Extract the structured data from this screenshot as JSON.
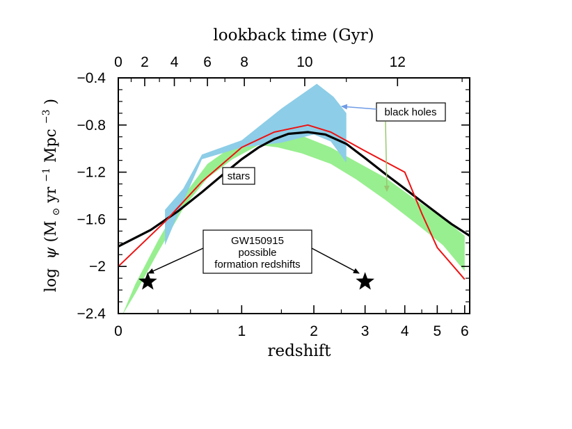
{
  "chart_data": {
    "type": "line",
    "title": "",
    "xlabel": "redshift",
    "xlabel_top": "lookback time (Gyr)",
    "ylabel_parts": {
      "log": "log",
      "psi": "ψ",
      "open": "(M",
      "sun": "⊙",
      "yr": " yr",
      "yr_exp": "−1",
      "mpc": " Mpc",
      "mpc_exp": "−3",
      "close": ")"
    },
    "xscale": "log(1+z)",
    "xlim": [
      0,
      6.2
    ],
    "ylim": [
      -2.4,
      -0.4
    ],
    "x_ticks": [
      "0",
      "1",
      "2",
      "3",
      "4",
      "5",
      "6"
    ],
    "y_ticks": [
      "−0.4",
      "−0.8",
      "−1.2",
      "−1.6",
      "−2",
      "−2.4"
    ],
    "top_ticks": [
      {
        "label": "0",
        "gyr": 0,
        "z": 0.0
      },
      {
        "label": "2",
        "gyr": 2,
        "z": 0.16
      },
      {
        "label": "4",
        "gyr": 4,
        "z": 0.37
      },
      {
        "label": "6",
        "gyr": 6,
        "z": 0.65
      },
      {
        "label": "8",
        "gyr": 8,
        "z": 1.03
      },
      {
        "label": "10",
        "gyr": 10,
        "z": 1.85
      },
      {
        "label": "12",
        "gyr": 12,
        "z": 3.8
      }
    ],
    "series": [
      {
        "name": "stars fit (black)",
        "color": "#000000",
        "points": [
          [
            0,
            -1.83
          ],
          [
            0.2,
            -1.69
          ],
          [
            0.4,
            -1.53
          ],
          [
            0.6,
            -1.37
          ],
          [
            0.8,
            -1.22
          ],
          [
            1.0,
            -1.09
          ],
          [
            1.2,
            -0.99
          ],
          [
            1.4,
            -0.92
          ],
          [
            1.6,
            -0.875
          ],
          [
            1.9,
            -0.86
          ],
          [
            2.2,
            -0.88
          ],
          [
            2.6,
            -0.96
          ],
          [
            3.0,
            -1.08
          ],
          [
            3.5,
            -1.22
          ],
          [
            4.0,
            -1.34
          ],
          [
            4.5,
            -1.45
          ],
          [
            5.0,
            -1.55
          ],
          [
            5.5,
            -1.64
          ],
          [
            6.2,
            -1.74
          ]
        ]
      },
      {
        "name": "black holes fit (red)",
        "color": "#ee1111",
        "points": [
          [
            0,
            -2.0
          ],
          [
            0.3,
            -1.62
          ],
          [
            0.6,
            -1.28
          ],
          [
            1.0,
            -0.99
          ],
          [
            1.4,
            -0.86
          ],
          [
            1.9,
            -0.8
          ],
          [
            2.3,
            -0.86
          ],
          [
            3.0,
            -1.02
          ],
          [
            4.0,
            -1.2
          ],
          [
            4.5,
            -1.55
          ],
          [
            5.0,
            -1.84
          ],
          [
            6.0,
            -2.11
          ]
        ]
      }
    ],
    "bands": [
      {
        "name": "stars data band",
        "color": "#98ef8f",
        "polygon": [
          [
            0.02,
            -2.42
          ],
          [
            0.1,
            -2.15
          ],
          [
            0.25,
            -1.78
          ],
          [
            0.45,
            -1.39
          ],
          [
            0.65,
            -1.13
          ],
          [
            0.9,
            -0.98
          ],
          [
            1.2,
            -0.87
          ],
          [
            1.45,
            -0.85
          ],
          [
            1.8,
            -0.89
          ],
          [
            2.3,
            -0.99
          ],
          [
            2.8,
            -1.11
          ],
          [
            3.5,
            -1.25
          ],
          [
            4.3,
            -1.43
          ],
          [
            5.2,
            -1.59
          ],
          [
            6.0,
            -1.74
          ],
          [
            6.0,
            -2.04
          ],
          [
            5.2,
            -1.82
          ],
          [
            4.3,
            -1.63
          ],
          [
            3.5,
            -1.44
          ],
          [
            2.8,
            -1.26
          ],
          [
            2.3,
            -1.13
          ],
          [
            1.8,
            -1.04
          ],
          [
            1.45,
            -0.99
          ],
          [
            1.2,
            -0.97
          ],
          [
            0.9,
            -1.09
          ],
          [
            0.65,
            -1.25
          ],
          [
            0.45,
            -1.49
          ],
          [
            0.25,
            -1.88
          ],
          [
            0.1,
            -2.23
          ],
          [
            0.02,
            -2.42
          ]
        ]
      },
      {
        "name": "black holes data band",
        "color": "#8dcde7",
        "polygon": [
          [
            0.3,
            -1.52
          ],
          [
            0.44,
            -1.34
          ],
          [
            0.6,
            -1.05
          ],
          [
            1.0,
            -0.93
          ],
          [
            1.5,
            -0.66
          ],
          [
            2.05,
            -0.45
          ],
          [
            2.35,
            -0.56
          ],
          [
            2.6,
            -0.7
          ],
          [
            2.6,
            -1.12
          ],
          [
            2.3,
            -0.94
          ],
          [
            2.0,
            -0.88
          ],
          [
            1.5,
            -0.95
          ],
          [
            1.0,
            -0.99
          ],
          [
            0.6,
            -1.09
          ],
          [
            0.44,
            -1.45
          ],
          [
            0.3,
            -1.82
          ]
        ]
      }
    ],
    "markers": [
      {
        "name": "GW150915 formation star low",
        "x": 0.18,
        "y": -2.13
      },
      {
        "name": "GW150915 formation star high",
        "x": 3.0,
        "y": -2.13
      }
    ],
    "annotations": {
      "black_holes": "black holes",
      "stars": "stars",
      "gw_line1": "GW150915",
      "gw_line2": "possible",
      "gw_line3": "formation redshifts"
    },
    "colors": {
      "black_holes_arrow": "#6f9be6",
      "stars_arrow": "#99c76f"
    }
  }
}
